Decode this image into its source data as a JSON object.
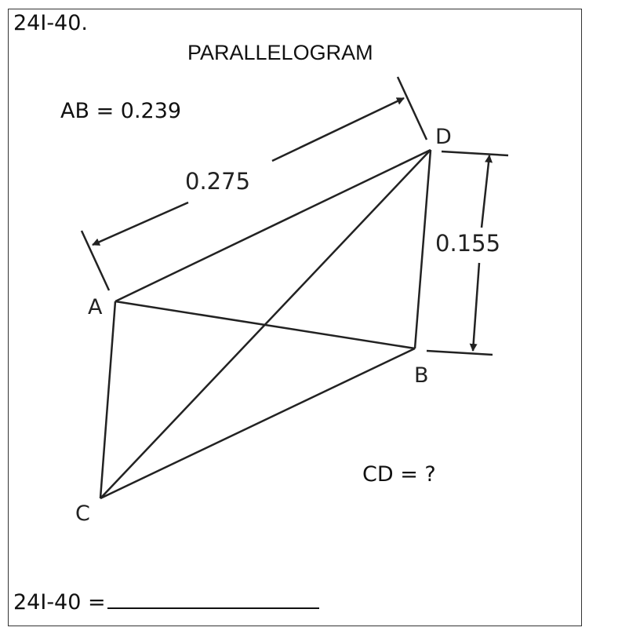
{
  "problem_id": "24I-40.",
  "title": "PARALLELOGRAM",
  "given": "AB = 0.239",
  "question": "CD = ?",
  "answer_prompt": "24I-40 =",
  "diagram": {
    "points": {
      "A": "A",
      "B": "B",
      "C": "C",
      "D": "D"
    },
    "dimensions": {
      "AD_length": "0.275",
      "height": "0.155"
    }
  }
}
